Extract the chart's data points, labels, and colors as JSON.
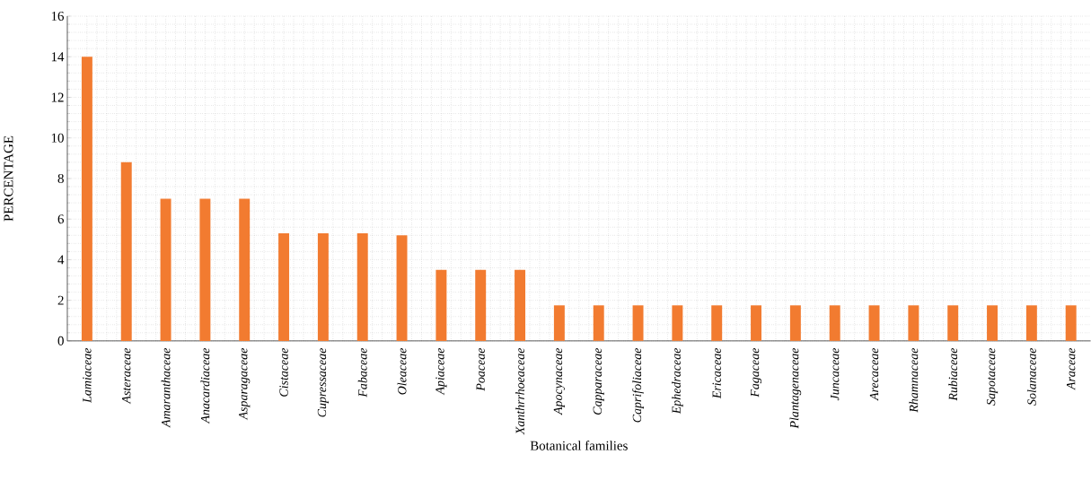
{
  "chart_data": {
    "type": "bar",
    "xlabel": "Botanical families",
    "ylabel": "PERCENTAGE",
    "categories": [
      "Lamiaceae",
      "Asteraceae",
      "Amaranthaceae",
      "Anacardiaceae",
      "Asparagaceae",
      "Cistaceae",
      "Cupressaceae",
      "Fabaceae",
      "Oleaceae",
      "Apiaceae",
      "Poaceae",
      "Xanthrrhoeaceae",
      "Apocynaceae",
      "Capparaceae",
      "Caprifoliaceae",
      "Ephedraceae",
      "Ericaceae",
      "Fagaceae",
      "Plantagenaceae",
      "Juncaceae",
      "Arecaceae",
      "Rhamnaceae",
      "Rubiaceae",
      "Sapotaceae",
      "Solanaceae",
      "Araceae"
    ],
    "values": [
      14.0,
      8.8,
      7.0,
      7.0,
      7.0,
      5.3,
      5.3,
      5.3,
      5.2,
      3.5,
      3.5,
      3.5,
      1.75,
      1.75,
      1.75,
      1.75,
      1.75,
      1.75,
      1.75,
      1.75,
      1.75,
      1.75,
      1.75,
      1.75,
      1.75,
      1.75
    ],
    "color": "#f27b30",
    "ylim": [
      0,
      16
    ],
    "yticks": [
      0,
      2,
      4,
      6,
      8,
      10,
      12,
      14,
      16
    ],
    "grid": true
  }
}
